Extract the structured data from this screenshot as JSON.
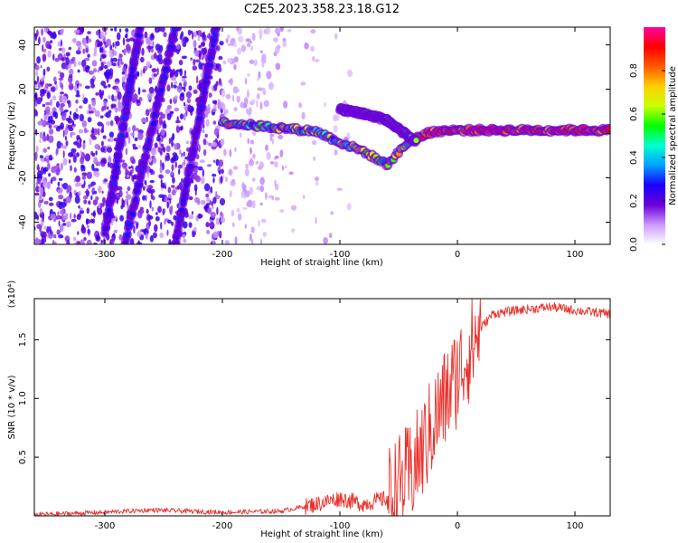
{
  "title": "C2E5.2023.358.23.18.G12",
  "chart_data": [
    {
      "type": "heatmap",
      "title": "C2E5.2023.358.23.18.G12",
      "xlabel": "Height of straight line (km)",
      "ylabel": "Frequency (Hz)",
      "xlim": [
        -360,
        130
      ],
      "ylim": [
        -50,
        48
      ],
      "x_ticks": [
        -300,
        -200,
        -100,
        0,
        100
      ],
      "y_ticks": [
        -40,
        -20,
        0,
        20,
        40
      ],
      "colorbar": {
        "label": "Normalized spectral amplitude",
        "range": [
          0.0,
          1.0
        ],
        "ticks": [
          0.0,
          0.2,
          0.4,
          0.6,
          0.8
        ],
        "palette": [
          "#ffffff",
          "#cc99ff",
          "#6a00d8",
          "#1b00ff",
          "#00a0ff",
          "#00ffd0",
          "#00ff00",
          "#c8ff00",
          "#ffd000",
          "#ff5a00",
          "#ff0000",
          "#ff00a0"
        ]
      },
      "ridges": [
        {
          "kind": "main-trace",
          "points": [
            [
              -200,
              5
            ],
            [
              -160,
              3
            ],
            [
              -120,
              1
            ],
            [
              -100,
              -4
            ],
            [
              -80,
              -8
            ],
            [
              -60,
              -14
            ],
            [
              -40,
              -3
            ],
            [
              -20,
              1
            ],
            [
              0,
              1.5
            ],
            [
              50,
              1.5
            ],
            [
              100,
              1.5
            ],
            [
              130,
              1.5
            ]
          ]
        },
        {
          "kind": "upper-branch",
          "points": [
            [
              -100,
              11
            ],
            [
              -80,
              9
            ],
            [
              -60,
              6
            ],
            [
              -45,
              0
            ],
            [
              -35,
              -4
            ]
          ]
        },
        {
          "kind": "diagonal",
          "points": [
            [
              -300,
              -45
            ],
            [
              -270,
              48
            ]
          ]
        },
        {
          "kind": "diagonal",
          "points": [
            [
              -283,
              -50
            ],
            [
              -240,
              48
            ]
          ]
        },
        {
          "kind": "diagonal",
          "points": [
            [
              -240,
              -50
            ],
            [
              -205,
              48
            ]
          ]
        }
      ]
    },
    {
      "type": "line",
      "xlabel": "Height of straight line (km)",
      "ylabel": "SNR (10 * v/v)",
      "y_multiplier": "(x10⁴)",
      "xlim": [
        -360,
        130
      ],
      "ylim": [
        0,
        1.85
      ],
      "x_ticks": [
        -300,
        -200,
        -100,
        0,
        100
      ],
      "y_ticks": [
        0.5,
        1.0,
        1.5
      ],
      "series_color": "#e8302a",
      "series": [
        {
          "x": [
            -360,
            -300,
            -260,
            -200,
            -150,
            -120,
            -100,
            -80,
            -60,
            -40,
            -30,
            -20,
            -10,
            0,
            10,
            20,
            30,
            50,
            80,
            100,
            130
          ],
          "values": [
            0.01,
            0.03,
            0.05,
            0.03,
            0.04,
            0.1,
            0.15,
            0.1,
            0.15,
            0.35,
            0.55,
            0.8,
            1.0,
            1.2,
            1.4,
            1.6,
            1.72,
            1.75,
            1.78,
            1.75,
            1.72
          ]
        }
      ]
    }
  ]
}
